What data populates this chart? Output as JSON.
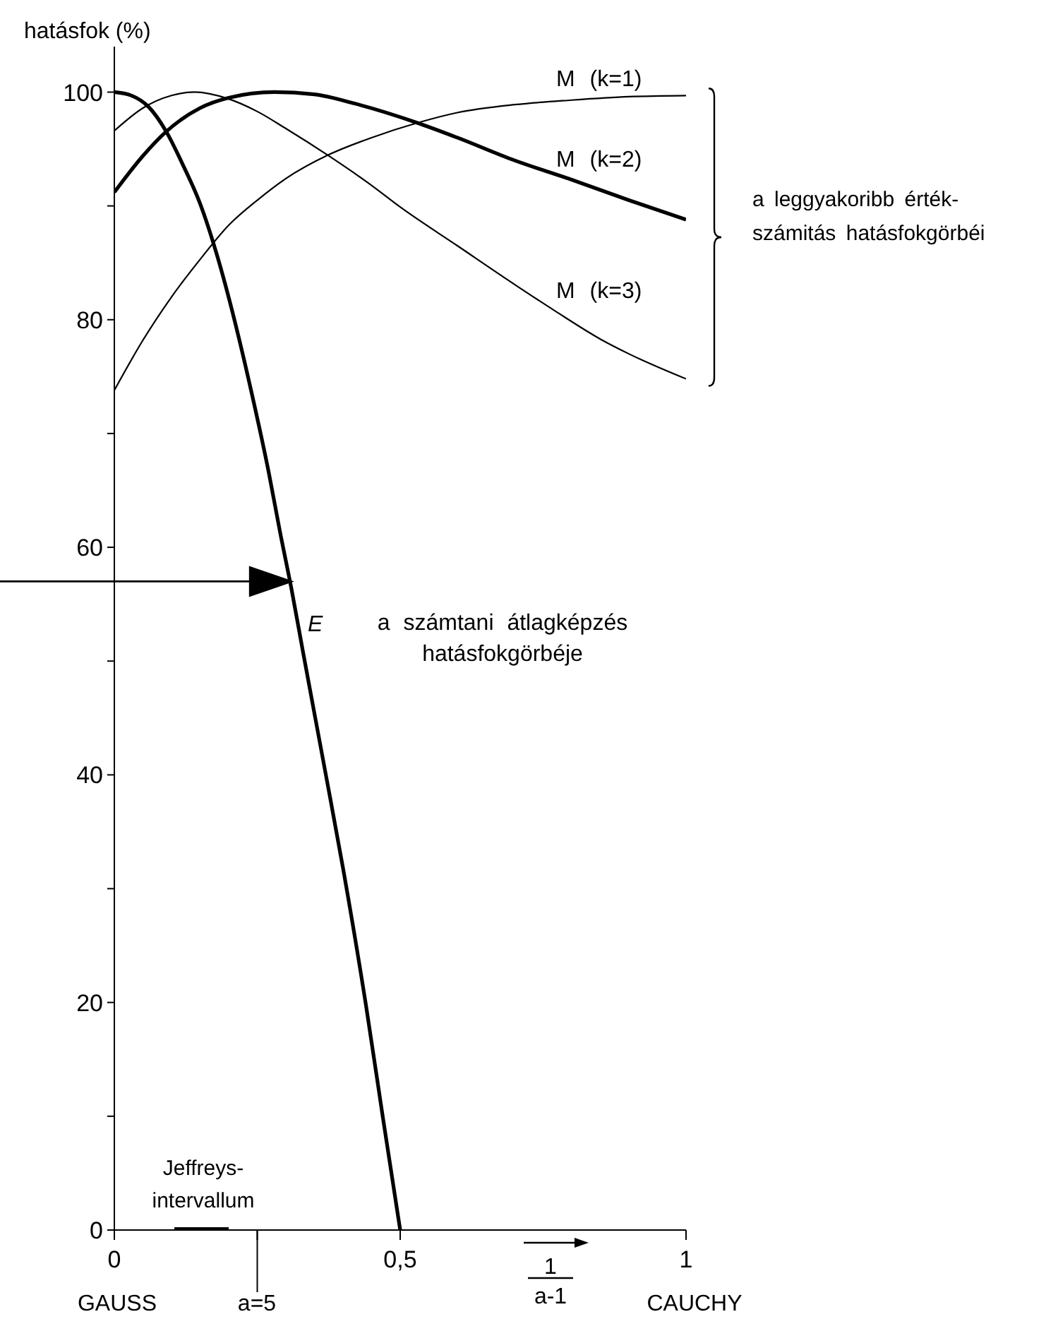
{
  "chart_data": {
    "type": "line",
    "ylabel": "hatásfok (%)",
    "xlabel": "1\na-1",
    "xlim": [
      0,
      1
    ],
    "xticks": [
      0,
      {
        "value": 0.25,
        "label": null
      },
      {
        "value": 0.5,
        "label": "0,5"
      },
      1
    ],
    "ylim": [
      0,
      104
    ],
    "yticks": [
      0,
      {
        "value": 10,
        "label": null
      },
      20,
      {
        "value": 30,
        "label": null
      },
      40,
      {
        "value": 50,
        "label": null
      },
      60,
      {
        "value": 70,
        "label": null
      },
      80,
      {
        "value": 90,
        "label": null
      },
      100
    ],
    "grid": false,
    "legend": false,
    "line_style": "solid",
    "series": [
      {
        "name": "M (k=1)",
        "color": "#000000",
        "x": [
          0,
          0.05,
          0.1,
          0.15,
          0.2,
          0.25,
          0.3,
          0.375,
          0.45,
          0.53,
          0.6,
          0.7,
          0.8,
          0.9,
          1
        ],
        "values": [
          73.8,
          78.2,
          82,
          85.3,
          88.3,
          90.5,
          92.4,
          94.5,
          96,
          97.3,
          98.2,
          98.9,
          99.3,
          99.6,
          99.7
        ]
      },
      {
        "name": "M (k=2)",
        "color": "#000000",
        "x": [
          0,
          0.05,
          0.09,
          0.15,
          0.2,
          0.28,
          0.35,
          0.42,
          0.53,
          0.6,
          0.7,
          0.8,
          0.9,
          1
        ],
        "values": [
          91.2,
          94.4,
          96.5,
          98.6,
          99.5,
          100,
          99.8,
          99,
          97.3,
          96,
          94,
          92.3,
          90.5,
          88.8
        ]
      },
      {
        "name": "M (k=3)",
        "color": "#000000",
        "x": [
          0,
          0.05,
          0.1,
          0.14,
          0.2,
          0.25,
          0.3,
          0.375,
          0.45,
          0.5,
          0.6,
          0.7,
          0.77,
          0.85,
          0.9,
          1
        ],
        "values": [
          96.6,
          98.6,
          99.7,
          100,
          99.4,
          98.3,
          96.8,
          94.4,
          91.8,
          89.9,
          86.5,
          83.1,
          80.8,
          78.3,
          77,
          74.8
        ]
      },
      {
        "name": "E",
        "color": "#000000",
        "x": [
          0,
          0.03,
          0.06,
          0.09,
          0.12,
          0.15,
          0.18,
          0.21,
          0.24,
          0.27,
          0.29,
          0.31,
          0.33,
          0.37,
          0.4,
          0.44,
          0.47,
          0.5
        ],
        "values": [
          100,
          99.7,
          98.7,
          96.6,
          93.6,
          90.2,
          85.6,
          80,
          73.6,
          66.6,
          61.3,
          56.3,
          50.8,
          40,
          31.8,
          19.8,
          9.8,
          0
        ]
      },
      {
        "name": "Jeffreys-\nintervallum",
        "color": "#000000",
        "x": [
          0.105,
          0.2
        ],
        "values": [
          0,
          0
        ]
      }
    ],
    "ref_lines": [
      {
        "axis": "y",
        "value": 57,
        "color": "#000000"
      }
    ],
    "annotations": [
      "a számtani átlagképzés\nhatásfokgörbéje",
      "a leggyakoribb érték-\nszámitás hatásfokgörbéi",
      "GAUSS",
      "a=5",
      "CAUCHY"
    ]
  }
}
